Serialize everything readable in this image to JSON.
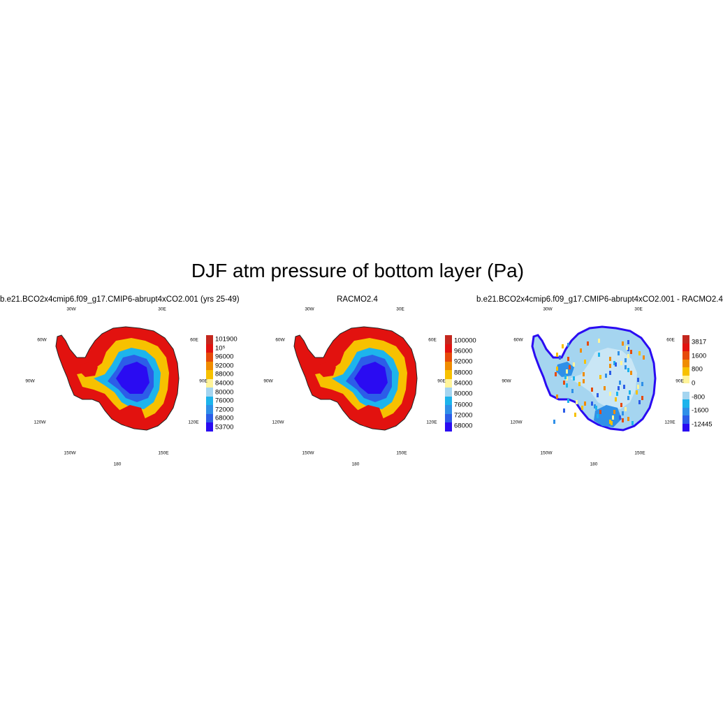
{
  "figure": {
    "title": "DJF atm pressure of bottom layer (Pa)"
  },
  "geo_labels": [
    "30W",
    "30E",
    "60W",
    "60E",
    "90W",
    "90E",
    "120W",
    "120E",
    "150W",
    "150E",
    "180"
  ],
  "panels": [
    {
      "title": "b.e21.BCO2x4cmip6.f09_g17.CMIP6-abrupt4xCO2.001 (yrs 25-49)",
      "colorbar": {
        "colors": [
          "#2a0bf2",
          "#2c5de8",
          "#2f90e8",
          "#1db4ec",
          "#a5d5f0",
          "#fff49a",
          "#f7c100",
          "#f08c00",
          "#e64a0a",
          "#e2120f",
          "#c4271e"
        ],
        "ticks": [
          "53700",
          "68000",
          "72000",
          "76000",
          "80000",
          "84000",
          "88000",
          "92000",
          "96000",
          "10⁵",
          "101900"
        ]
      }
    },
    {
      "title": "RACMO2.4",
      "colorbar": {
        "colors": [
          "#2a0bf2",
          "#2c5de8",
          "#2f90e8",
          "#1db4ec",
          "#a5d5f0",
          "#fff49a",
          "#f7c100",
          "#f08c00",
          "#e64a0a",
          "#e2120f",
          "#c4271e"
        ],
        "ticks": [
          "68000",
          "72000",
          "76000",
          "80000",
          "84000",
          "88000",
          "92000",
          "96000",
          "100000"
        ]
      }
    },
    {
      "title": "b.e21.BCO2x4cmip6.f09_g17.CMIP6-abrupt4xCO2.001 - RACMO2.4",
      "colorbar": {
        "colors": [
          "#2a0bf2",
          "#2c5de8",
          "#2f90e8",
          "#1db4ec",
          "#a5d5f0",
          "#ffffff",
          "#fff49a",
          "#f7c100",
          "#f08c00",
          "#e64a0a",
          "#e2120f",
          "#c4271e"
        ],
        "ticks": [
          "-12445",
          "-1600",
          "-800",
          "0",
          "800",
          "1600",
          "3817"
        ]
      }
    }
  ]
}
